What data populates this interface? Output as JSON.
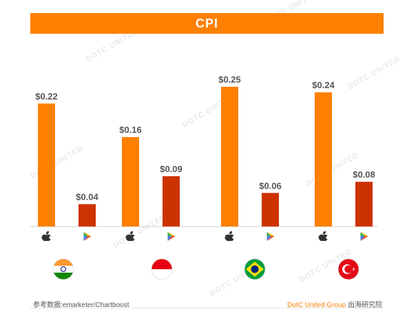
{
  "header": {
    "title": "CPI"
  },
  "chart_data": {
    "type": "bar",
    "title": "CPI",
    "groups": [
      "India",
      "Indonesia",
      "Brazil",
      "Turkey"
    ],
    "series": [
      {
        "platform": "ios-app-store",
        "color": "#ff8000",
        "values": [
          0.22,
          0.16,
          0.25,
          0.24
        ],
        "labels": [
          "$0.22",
          "$0.16",
          "$0.25",
          "$0.24"
        ]
      },
      {
        "platform": "google-play",
        "color": "#cc3300",
        "values": [
          0.04,
          0.09,
          0.06,
          0.08
        ],
        "labels": [
          "$0.04",
          "$0.09",
          "$0.06",
          "$0.08"
        ]
      }
    ],
    "ylim": [
      0,
      0.28
    ],
    "grid": false
  },
  "icons": {
    "series_0": "apple-icon",
    "series_1": "google-play-icon",
    "flags": [
      "india-flag-icon",
      "indonesia-flag-icon",
      "brazil-flag-icon",
      "turkey-flag-icon"
    ]
  },
  "watermark": "DOTC UNITED",
  "footer": {
    "source": "参考数据:emarketer/Chartboost",
    "brand": "DotC United Group",
    "brand_cn": "出海研究院"
  }
}
